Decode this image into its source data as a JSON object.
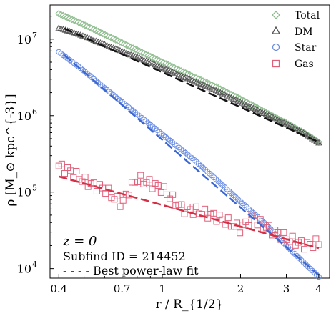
{
  "chart_data": {
    "type": "scatter",
    "xlabel": "r / R_{1/2}",
    "ylabel": "ρ [M_⊙ kpc^{-3}]",
    "xscale": "log",
    "yscale": "log",
    "xlim": [
      0.37,
      4.4
    ],
    "ylim": [
      7500,
      28000000
    ],
    "x_ticks": [
      0.4,
      0.7,
      1,
      2,
      3,
      4
    ],
    "x_tick_labels": [
      "0.4",
      "0.7",
      "1",
      "2",
      "3",
      "4"
    ],
    "y_ticks": [
      10000,
      100000,
      1000000,
      10000000
    ],
    "y_tick_labels": [
      "10^4",
      "10^5",
      "10^6",
      "10^7"
    ],
    "grid": false,
    "legend_placement": "top-right",
    "series": [
      {
        "name": "Total",
        "marker": "diamond",
        "color": "#8fbc8f",
        "x": [
          0.4,
          0.48,
          0.6,
          0.8,
          1.0,
          1.3,
          1.6,
          2.0,
          2.5,
          3.0,
          3.5,
          4.0
        ],
        "y": [
          21500000,
          16500000,
          11500000,
          7200000,
          5000000,
          3300000,
          2400000,
          1650000,
          1100000,
          800000,
          600000,
          450000
        ]
      },
      {
        "name": "DM",
        "marker": "triangle",
        "color": "#555555",
        "x": [
          0.4,
          0.48,
          0.6,
          0.8,
          1.0,
          1.3,
          1.6,
          2.0,
          2.5,
          3.0,
          3.5,
          4.0
        ],
        "y": [
          14000000,
          11500000,
          8500000,
          5800000,
          4200000,
          2900000,
          2150000,
          1500000,
          1050000,
          780000,
          590000,
          440000
        ]
      },
      {
        "name": "Star",
        "marker": "circle",
        "color": "#6c8ee0",
        "x": [
          0.4,
          0.48,
          0.6,
          0.8,
          1.0,
          1.3,
          1.6,
          2.0,
          2.5,
          3.0,
          3.5,
          4.0
        ],
        "y": [
          6800000,
          4300000,
          2300000,
          1050000,
          570000,
          280000,
          150000,
          75000,
          38000,
          20000,
          12000,
          7800
        ]
      },
      {
        "name": "Gas",
        "marker": "square",
        "color": "#e0607a",
        "x": [
          0.4,
          0.45,
          0.5,
          0.55,
          0.6,
          0.65,
          0.7,
          0.75,
          0.8,
          0.9,
          1.0,
          1.1,
          1.2,
          1.4,
          1.6,
          1.8,
          2.0,
          2.2,
          2.5,
          2.8,
          3.0,
          3.3,
          3.6,
          4.0
        ],
        "y": [
          220000,
          180000,
          140000,
          120000,
          110000,
          85000,
          70000,
          110000,
          150000,
          130000,
          110000,
          80000,
          60000,
          55000,
          48000,
          40000,
          33000,
          45000,
          35000,
          28000,
          25000,
          22000,
          20000,
          22000
        ]
      }
    ],
    "fits": [
      {
        "series": "DM",
        "style": "dashed",
        "color": "#111111",
        "x": [
          0.42,
          4.0
        ],
        "y": [
          13800000,
          450000
        ]
      },
      {
        "series": "Star",
        "style": "dashed",
        "color": "#3a66d6",
        "x": [
          0.42,
          4.0
        ],
        "y": [
          6200000,
          8200
        ]
      },
      {
        "series": "Gas",
        "style": "dashed",
        "color": "#d42f45",
        "x": [
          0.4,
          4.0
        ],
        "y": [
          160000,
          18500
        ]
      }
    ],
    "annotations": {
      "redshift": "z = 0",
      "subfind": "Subfind ID = 214452",
      "fit_note": "- - - - Best power-law fit"
    }
  }
}
